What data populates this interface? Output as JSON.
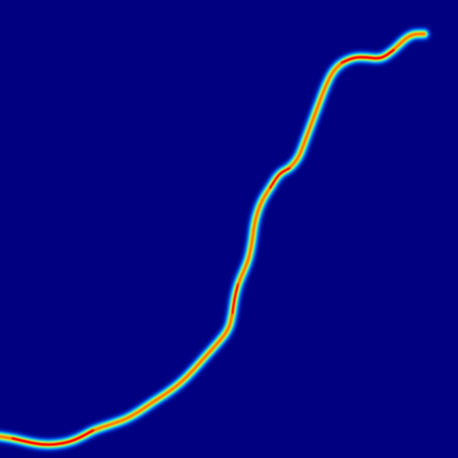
{
  "image": {
    "kind": "heatmap-ridge",
    "colormap": "jet",
    "colors": {
      "background": "#000080",
      "low": "#0050ff",
      "mid_low": "#00e0ff",
      "mid": "#ffff00",
      "mid_high": "#ff8000",
      "peak": "#ff0000"
    }
  }
}
